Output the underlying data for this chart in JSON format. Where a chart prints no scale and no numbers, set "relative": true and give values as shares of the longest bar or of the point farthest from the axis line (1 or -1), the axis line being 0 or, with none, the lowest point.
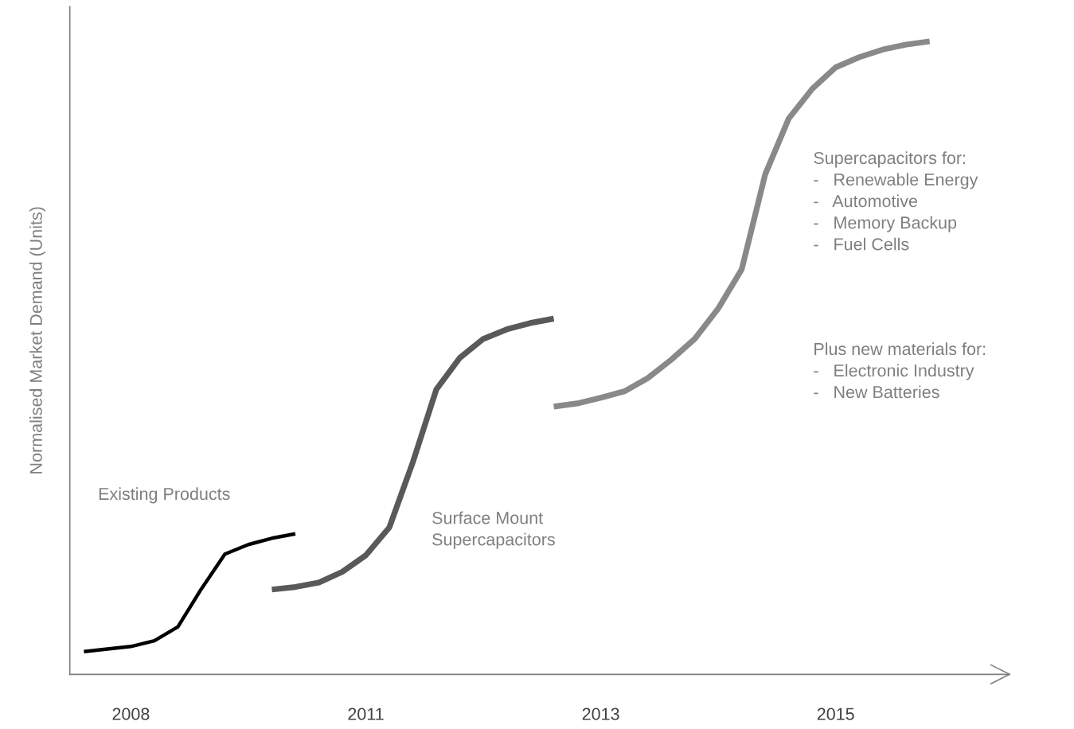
{
  "chart_data": {
    "type": "line",
    "ylabel": "Normalised Market Demand (Units)",
    "relative": true,
    "categories": [
      null,
      null,
      "2008",
      null,
      null,
      null,
      null,
      null,
      null,
      null,
      null,
      null,
      "2011",
      null,
      null,
      null,
      null,
      null,
      null,
      null,
      null,
      null,
      "2013",
      null,
      null,
      null,
      null,
      null,
      null,
      null,
      null,
      null,
      "2015",
      null,
      null,
      null,
      null
    ],
    "series": [
      {
        "color": "#000000",
        "values": [
          0.036,
          0.04,
          0.044,
          0.053,
          0.075,
          0.135,
          0.19,
          0.205,
          0.215,
          0.222,
          null,
          null,
          null,
          null,
          null,
          null,
          null,
          null,
          null,
          null,
          null,
          null,
          null,
          null,
          null,
          null,
          null,
          null,
          null,
          null,
          null,
          null,
          null,
          null,
          null,
          null,
          null
        ]
      },
      {
        "color": "#595959",
        "values": [
          null,
          null,
          null,
          null,
          null,
          null,
          null,
          null,
          0.134,
          0.138,
          0.145,
          0.162,
          0.188,
          0.232,
          0.335,
          0.45,
          0.5,
          0.53,
          0.545,
          0.555,
          0.562,
          null,
          null,
          null,
          null,
          null,
          null,
          null,
          null,
          null,
          null,
          null,
          null,
          null,
          null,
          null,
          null
        ]
      },
      {
        "color": "#898989",
        "values": [
          null,
          null,
          null,
          null,
          null,
          null,
          null,
          null,
          null,
          null,
          null,
          null,
          null,
          null,
          null,
          null,
          null,
          null,
          null,
          null,
          0.423,
          0.428,
          0.437,
          0.447,
          0.468,
          0.497,
          0.53,
          0.578,
          0.64,
          0.79,
          0.878,
          0.925,
          0.959,
          0.975,
          0.987,
          0.995,
          1.0
        ]
      }
    ],
    "annotations": [
      "Existing Products",
      "Surface Mount\nSupercapacitors",
      "Supercapacitors for:\n-   Renewable Energy\n-   Automotive\n-   Memory Backup\n-   Fuel Cells",
      "Plus new materials for:\n-   Electronic Industry\n-   New Batteries"
    ]
  }
}
